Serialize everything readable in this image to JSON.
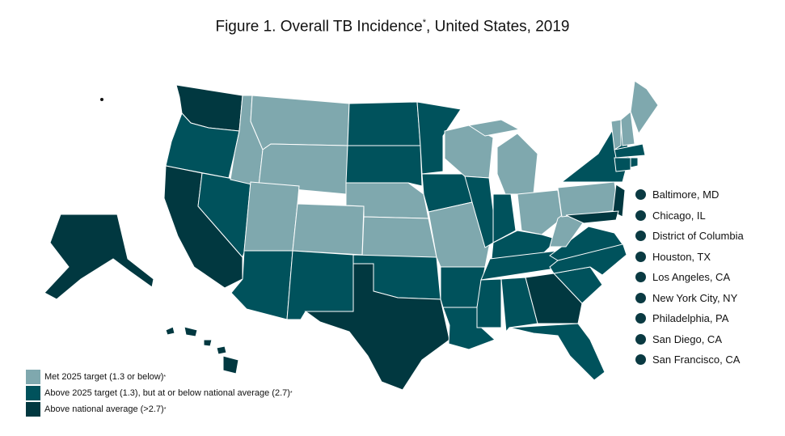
{
  "title": {
    "text": "Figure 1. Overall TB Incidence",
    "sup": "*",
    "suffix": ", United States, 2019"
  },
  "colors": {
    "met": "#7fa8ae",
    "above_target": "#00525c",
    "above_national": "#013840"
  },
  "legend": [
    {
      "label": "Met 2025 target (1.3 or below)",
      "sup": "*",
      "level": 1
    },
    {
      "label": "Above 2025 target (1.3), but at or below national average (2.7)",
      "sup": "*",
      "level": 2
    },
    {
      "label": "Above national average (>2.7)",
      "sup": "*",
      "level": 3
    }
  ],
  "cities": [
    "Baltimore, MD",
    "Chicago, IL",
    "District of Columbia",
    "Houston, TX",
    "Los Angeles, CA",
    "New York City, NY",
    "Philadelphia, PA",
    "San Diego, CA",
    "San Francisco, CA"
  ],
  "state_levels": {
    "WA": 3,
    "OR": 2,
    "CA": 3,
    "NV": 2,
    "ID": 1,
    "MT": 1,
    "WY": 1,
    "UT": 1,
    "CO": 1,
    "AZ": 2,
    "NM": 2,
    "ND": 2,
    "SD": 2,
    "NE": 1,
    "KS": 1,
    "OK": 2,
    "TX": 3,
    "MN": 2,
    "IA": 2,
    "MO": 1,
    "AR": 2,
    "LA": 2,
    "WI": 1,
    "IL": 2,
    "MI": 1,
    "IN": 2,
    "OH": 1,
    "KY": 2,
    "TN": 2,
    "MS": 2,
    "AL": 2,
    "GA": 3,
    "FL": 2,
    "SC": 2,
    "NC": 2,
    "VA": 2,
    "WV": 1,
    "PA": 1,
    "NY": 2,
    "NJ": 3,
    "MD": 3,
    "VT": 1,
    "NH": 1,
    "ME": 1,
    "MA": 2,
    "CT": 2,
    "RI": 2,
    "AK": 3,
    "HI": 3
  }
}
